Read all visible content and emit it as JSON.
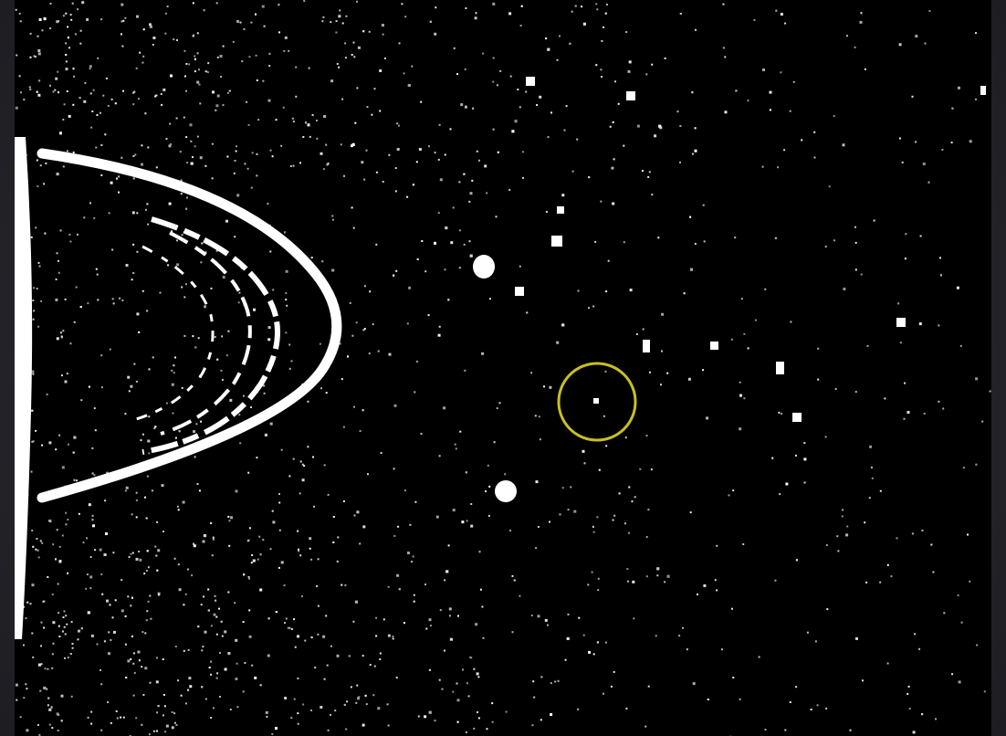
{
  "image": {
    "subject": "planet-ring-edge-starfield",
    "background_color": "#000000",
    "foreground_color": "#ffffff",
    "highlight_color": "#c8c020",
    "highlight_marker": "circle"
  }
}
